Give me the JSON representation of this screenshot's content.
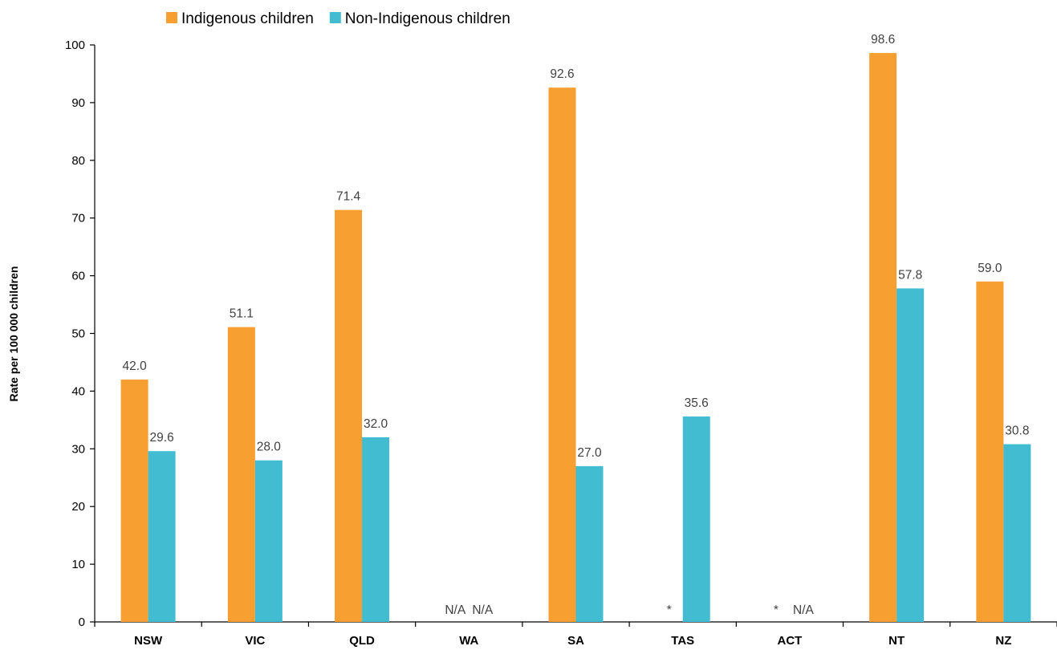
{
  "chart_data": {
    "type": "bar",
    "title": "",
    "xlabel": "",
    "ylabel": "Rate per 100 000 children",
    "ylim": [
      0,
      100
    ],
    "yticks": [
      0,
      10,
      20,
      30,
      40,
      50,
      60,
      70,
      80,
      90,
      100
    ],
    "categories": [
      "NSW",
      "VIC",
      "QLD",
      "WA",
      "SA",
      "TAS",
      "ACT",
      "NT",
      "NZ"
    ],
    "legend_position": "top-left",
    "grid": false,
    "series": [
      {
        "name": "Indigenous children",
        "color": "#F79F30",
        "values": [
          42.0,
          51.1,
          71.4,
          null,
          92.6,
          null,
          null,
          98.6,
          59.0
        ],
        "labels": [
          "42.0",
          "51.1",
          "71.4",
          "N/A",
          "92.6",
          "*",
          "*",
          "98.6",
          "59.0"
        ]
      },
      {
        "name": "Non-Indigenous children",
        "color": "#42BCD0",
        "values": [
          29.6,
          28.0,
          32.0,
          null,
          27.0,
          35.6,
          null,
          57.8,
          30.8
        ],
        "labels": [
          "29.6",
          "28.0",
          "32.0",
          "N/A",
          "27.0",
          "35.6",
          "N/A",
          "57.8",
          "30.8"
        ]
      }
    ]
  }
}
